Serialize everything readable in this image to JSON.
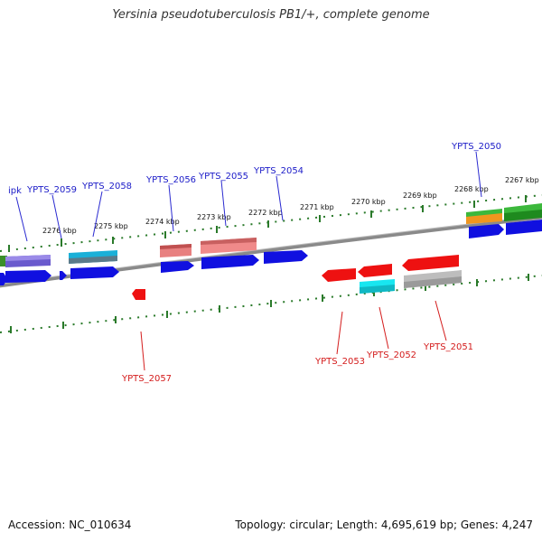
{
  "title": "Yersinia pseudotuberculosis PB1/+, complete genome",
  "footer": {
    "accession": "Accession: NC_010634",
    "summary": "Topology: circular; Length: 4,695,619 bp; Genes: 4,247"
  },
  "colors": {
    "forward_label": "#1c1cc8",
    "reverse_label": "#d41c1c",
    "tick": "#2a7a2a",
    "backbone": "#808080"
  },
  "kbp_labels": [
    "2276 kbp",
    "2275 kbp",
    "2274 kbp",
    "2273 kbp",
    "2272 kbp",
    "2271 kbp",
    "2270 kbp",
    "2269 kbp",
    "2268 kbp",
    "2267 kbp"
  ],
  "forward_genes": [
    "ipk",
    "YPTS_2059",
    "YPTS_2058",
    "YPTS_2056",
    "YPTS_2055",
    "YPTS_2054",
    "YPTS_2050"
  ],
  "reverse_genes": [
    "YPTS_2057",
    "YPTS_2053",
    "YPTS_2052",
    "YPTS_2051"
  ]
}
